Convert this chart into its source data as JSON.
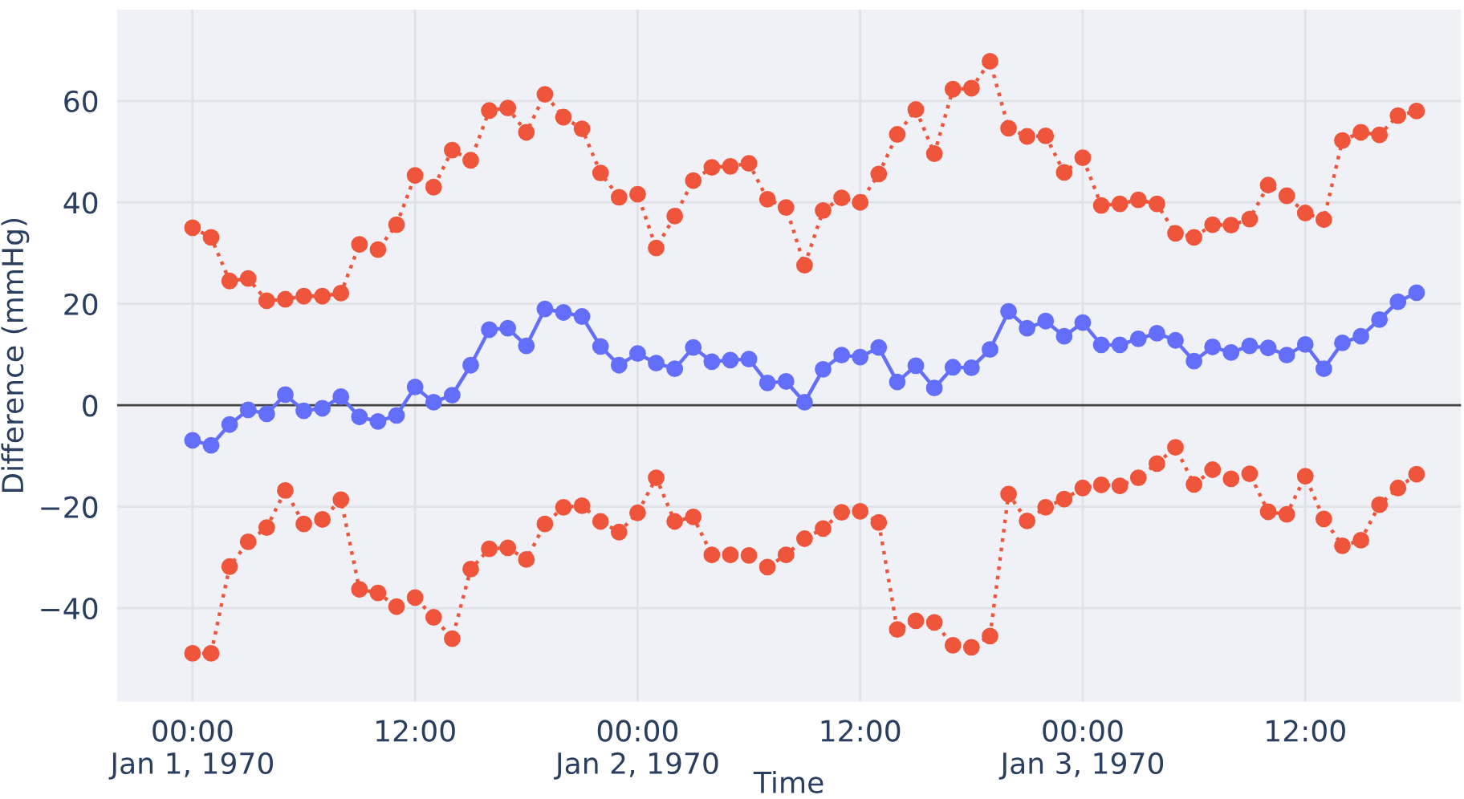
{
  "chart_data": {
    "type": "line",
    "xlabel": "Time",
    "ylabel": "Difference (mmHg)",
    "x": [
      "1970-01-01T00:00",
      "1970-01-01T01:00",
      "1970-01-01T02:00",
      "1970-01-01T03:00",
      "1970-01-01T04:00",
      "1970-01-01T05:00",
      "1970-01-01T06:00",
      "1970-01-01T07:00",
      "1970-01-01T08:00",
      "1970-01-01T09:00",
      "1970-01-01T10:00",
      "1970-01-01T11:00",
      "1970-01-01T12:00",
      "1970-01-01T13:00",
      "1970-01-01T14:00",
      "1970-01-01T15:00",
      "1970-01-01T16:00",
      "1970-01-01T17:00",
      "1970-01-01T18:00",
      "1970-01-01T19:00",
      "1970-01-01T20:00",
      "1970-01-01T21:00",
      "1970-01-01T22:00",
      "1970-01-01T23:00",
      "1970-01-02T00:00",
      "1970-01-02T01:00",
      "1970-01-02T02:00",
      "1970-01-02T03:00",
      "1970-01-02T04:00",
      "1970-01-02T05:00",
      "1970-01-02T06:00",
      "1970-01-02T07:00",
      "1970-01-02T08:00",
      "1970-01-02T09:00",
      "1970-01-02T10:00",
      "1970-01-02T11:00",
      "1970-01-02T12:00",
      "1970-01-02T13:00",
      "1970-01-02T14:00",
      "1970-01-02T15:00",
      "1970-01-02T16:00",
      "1970-01-02T17:00",
      "1970-01-02T18:00",
      "1970-01-02T19:00",
      "1970-01-02T20:00",
      "1970-01-02T21:00",
      "1970-01-02T22:00",
      "1970-01-02T23:00",
      "1970-01-03T00:00",
      "1970-01-03T01:00",
      "1970-01-03T02:00",
      "1970-01-03T03:00",
      "1970-01-03T04:00",
      "1970-01-03T05:00",
      "1970-01-03T06:00",
      "1970-01-03T07:00",
      "1970-01-03T08:00",
      "1970-01-03T09:00",
      "1970-01-03T10:00",
      "1970-01-03T11:00",
      "1970-01-03T12:00",
      "1970-01-03T13:00",
      "1970-01-03T14:00",
      "1970-01-03T15:00",
      "1970-01-03T16:00",
      "1970-01-03T17:00",
      "1970-01-03T18:00"
    ],
    "series": [
      {
        "color": "#ef553b",
        "line_style": "dotted",
        "values": [
          35.0,
          33.1,
          24.5,
          25.0,
          20.6,
          20.9,
          21.5,
          21.5,
          22.1,
          31.7,
          30.7,
          35.6,
          45.3,
          43.0,
          50.3,
          48.3,
          58.1,
          58.6,
          53.8,
          61.3,
          56.8,
          54.5,
          45.8,
          41.0,
          41.6,
          31.0,
          37.3,
          44.3,
          46.9,
          47.1,
          47.7,
          40.6,
          39.0,
          27.6,
          38.4,
          40.9,
          40.0,
          45.6,
          53.4,
          58.3,
          49.6,
          62.3,
          62.5,
          67.8,
          54.6,
          53.0,
          53.1,
          45.9,
          48.8,
          39.4,
          39.7,
          40.5,
          39.7,
          33.9,
          33.1,
          35.6,
          35.5,
          36.7,
          43.4,
          41.3,
          37.9,
          36.6,
          52.2,
          53.8,
          53.3,
          57.1,
          58.0
        ]
      },
      {
        "color": "#636efa",
        "line_style": "solid",
        "values": [
          -6.9,
          -7.9,
          -3.8,
          -0.9,
          -1.7,
          2.1,
          -1.1,
          -0.6,
          1.7,
          -2.3,
          -3.2,
          -2.0,
          3.6,
          0.6,
          2.0,
          7.9,
          14.9,
          15.2,
          11.7,
          19.0,
          18.3,
          17.5,
          11.6,
          7.9,
          10.2,
          8.3,
          7.2,
          11.4,
          8.6,
          8.9,
          9.1,
          4.4,
          4.7,
          0.6,
          7.1,
          9.9,
          9.5,
          11.4,
          4.6,
          7.8,
          3.4,
          7.5,
          7.4,
          11.0,
          18.5,
          15.2,
          16.6,
          13.6,
          16.3,
          11.9,
          11.9,
          13.1,
          14.2,
          12.8,
          8.7,
          11.5,
          10.4,
          11.7,
          11.3,
          9.9,
          12.0,
          7.2,
          12.3,
          13.6,
          16.9,
          20.4,
          22.2
        ]
      },
      {
        "color": "#ef553b",
        "line_style": "dotted",
        "values": [
          -48.9,
          -48.9,
          -31.8,
          -26.9,
          -24.1,
          -16.8,
          -23.4,
          -22.5,
          -18.6,
          -36.3,
          -37.0,
          -39.7,
          -37.9,
          -41.8,
          -46.0,
          -32.3,
          -28.3,
          -28.1,
          -30.4,
          -23.4,
          -20.1,
          -19.8,
          -22.9,
          -25.0,
          -21.2,
          -14.3,
          -22.9,
          -22.0,
          -29.5,
          -29.5,
          -29.6,
          -31.9,
          -29.5,
          -26.3,
          -24.3,
          -21.1,
          -20.9,
          -23.1,
          -44.2,
          -42.5,
          -42.8,
          -47.3,
          -47.7,
          -45.5,
          -17.5,
          -22.8,
          -20.1,
          -18.5,
          -16.3,
          -15.7,
          -15.9,
          -14.3,
          -11.5,
          -8.3,
          -15.6,
          -12.7,
          -14.5,
          -13.5,
          -21.0,
          -21.5,
          -14.0,
          -22.4,
          -27.7,
          -26.6,
          -19.6,
          -16.3,
          -13.6
        ]
      }
    ],
    "marker": "circle",
    "xlim": [
      "1969-12-31T19:56",
      "1970-01-03T20:24"
    ],
    "xticks": [
      {
        "value": "1970-01-01T00:00",
        "label": "00:00\nJan 1, 1970"
      },
      {
        "value": "1970-01-01T12:00",
        "label": "12:00"
      },
      {
        "value": "1970-01-02T00:00",
        "label": "00:00\nJan 2, 1970"
      },
      {
        "value": "1970-01-02T12:00",
        "label": "12:00"
      },
      {
        "value": "1970-01-03T00:00",
        "label": "00:00\nJan 3, 1970"
      },
      {
        "value": "1970-01-03T12:00",
        "label": "12:00"
      }
    ],
    "ylim": [
      -58.4,
      78
    ],
    "yticks": [
      {
        "value": -40,
        "label": "−40"
      },
      {
        "value": -20,
        "label": "−20"
      },
      0,
      20,
      40,
      60
    ],
    "ref_lines": [
      {
        "axis": "y",
        "value": 0,
        "color": "#444444"
      }
    ],
    "grid": true,
    "legend": false
  }
}
